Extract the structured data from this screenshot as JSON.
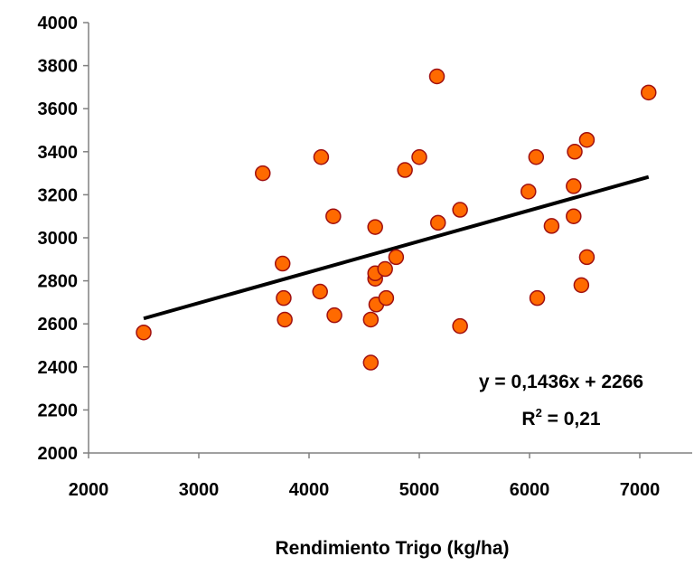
{
  "chart_data": {
    "type": "scatter",
    "title": "",
    "xlabel": "Rendimiento Trigo (kg/ha)",
    "ylabel": "",
    "xlim": [
      2000,
      7500
    ],
    "ylim": [
      2000,
      4000
    ],
    "x_ticks": [
      "2000",
      "3000",
      "4000",
      "5000",
      "6000",
      "7000"
    ],
    "y_ticks": [
      "2000",
      "2200",
      "2400",
      "2600",
      "2800",
      "3000",
      "3200",
      "3400",
      "3600",
      "3800",
      "4000"
    ],
    "grid": false,
    "point_color": "#ff6a00",
    "point_edge_color": "#a01010",
    "series": [
      {
        "points": [
          [
            2500,
            2560
          ],
          [
            3580,
            3300
          ],
          [
            3760,
            2880
          ],
          [
            3770,
            2720
          ],
          [
            3780,
            2620
          ],
          [
            4100,
            2750
          ],
          [
            4110,
            3375
          ],
          [
            4220,
            3100
          ],
          [
            4230,
            2640
          ],
          [
            4560,
            2420
          ],
          [
            4560,
            2620
          ],
          [
            4600,
            3050
          ],
          [
            4600,
            2810
          ],
          [
            4600,
            2835
          ],
          [
            4610,
            2690
          ],
          [
            4690,
            2855
          ],
          [
            4700,
            2720
          ],
          [
            4790,
            2910
          ],
          [
            4870,
            3315
          ],
          [
            5000,
            3375
          ],
          [
            5160,
            3750
          ],
          [
            5170,
            3070
          ],
          [
            5370,
            3130
          ],
          [
            5370,
            2590
          ],
          [
            5990,
            3215
          ],
          [
            6060,
            3375
          ],
          [
            6070,
            2720
          ],
          [
            6200,
            3055
          ],
          [
            6400,
            3100
          ],
          [
            6400,
            3240
          ],
          [
            6410,
            3400
          ],
          [
            6470,
            2780
          ],
          [
            6520,
            3455
          ],
          [
            6520,
            2910
          ],
          [
            7080,
            3675
          ]
        ]
      }
    ],
    "trendline": {
      "slope": 0.1436,
      "intercept": 2266,
      "x_range": [
        2500,
        7080
      ],
      "color": "#000000"
    },
    "annotations": {
      "equation": "y = 0,1436x + 2266",
      "r2_prefix": "R",
      "r2_sup": "2",
      "r2_suffix": " = 0,21"
    }
  }
}
